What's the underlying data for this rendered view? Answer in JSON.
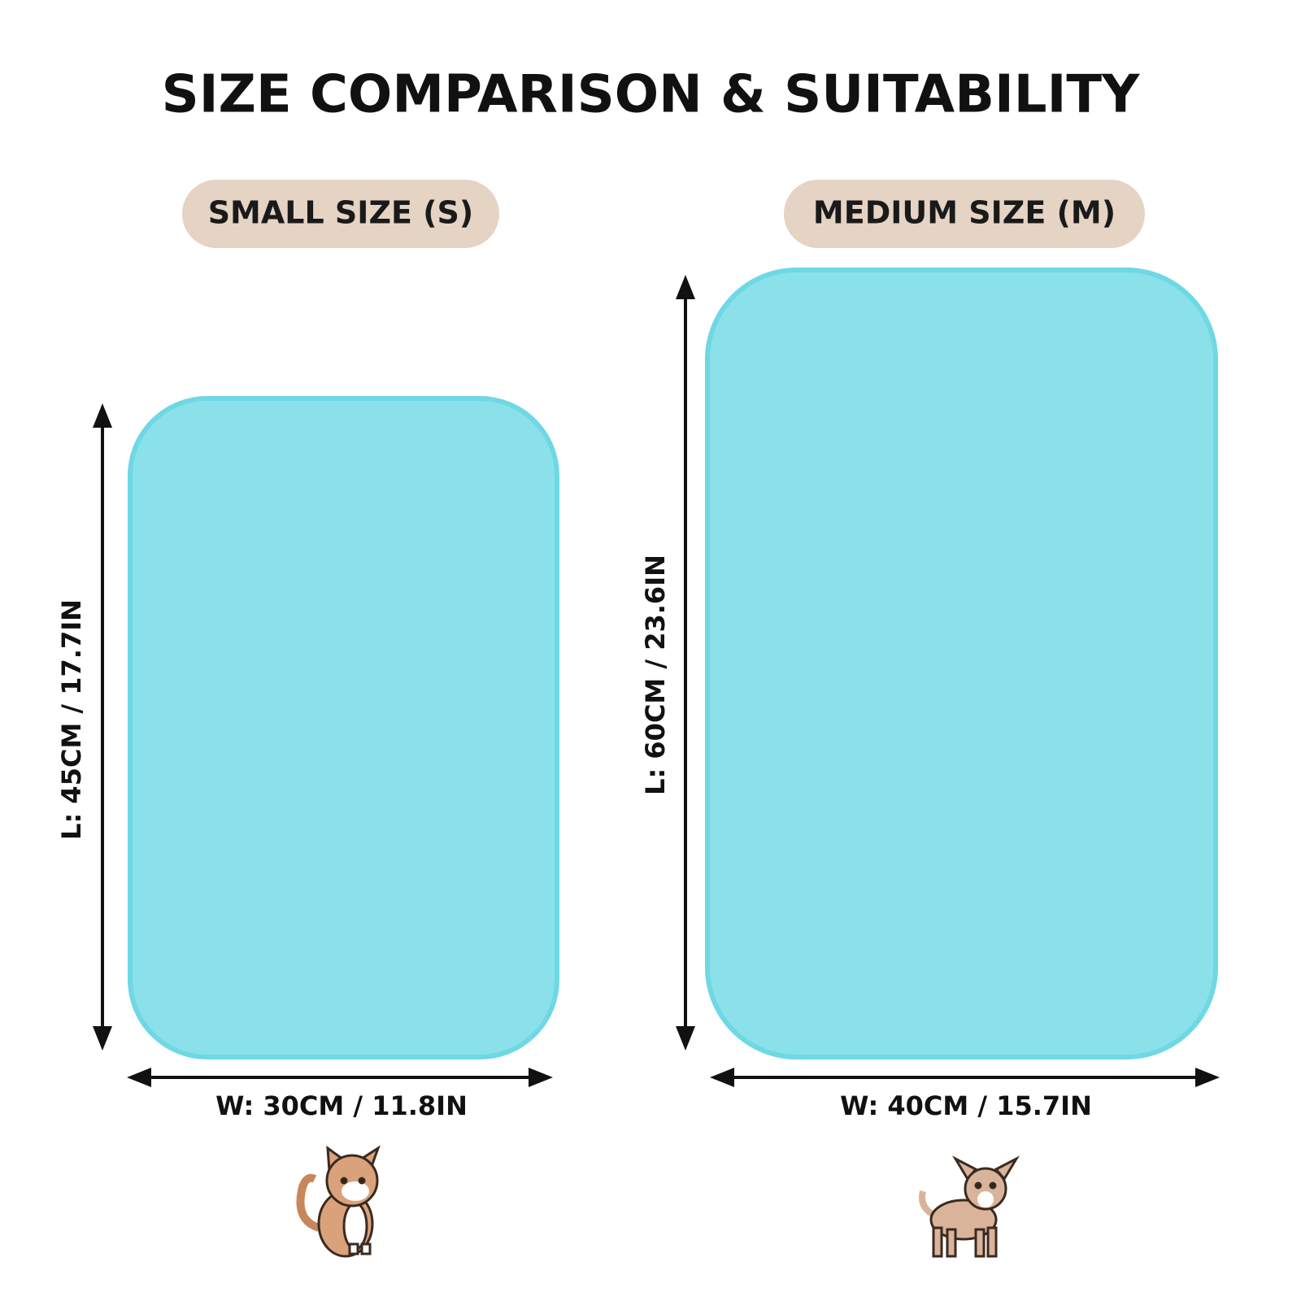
{
  "title": "SIZE COMPARISON & SUITABILITY",
  "sizes": [
    {
      "badge": "SMALL SIZE (S)",
      "length": "L: 45CM / 17.7IN",
      "width": "W: 30CM / 11.8IN"
    },
    {
      "badge": "MEDIUM SIZE (M)",
      "length": "L: 60CM / 23.6IN",
      "width": "W: 40CM / 15.7IN"
    }
  ]
}
